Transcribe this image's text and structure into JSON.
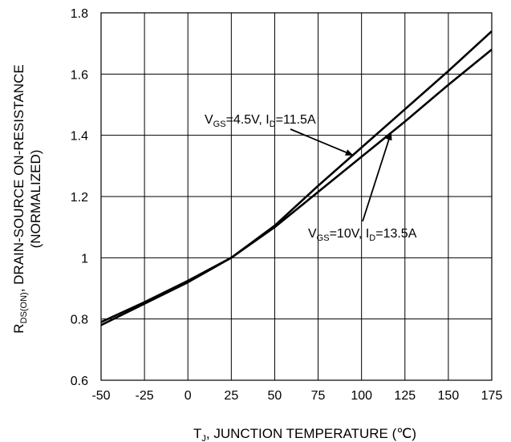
{
  "chart_data": {
    "type": "line",
    "xlabel": {
      "pre": "T",
      "sub": "J",
      "post": ", JUNCTION TEMPERATURE (℃)"
    },
    "ylabel": {
      "pre": "R",
      "sub": "DS(ON)",
      "post": ", DRAIN-SOURCE ON-RESISTANCE",
      "line2": "(NORMALIZED)"
    },
    "xlim": [
      -50,
      175
    ],
    "ylim": [
      0.6,
      1.8
    ],
    "grid": true,
    "xticks": [
      "-50",
      "-25",
      "0",
      "25",
      "50",
      "75",
      "100",
      "125",
      "150",
      "175"
    ],
    "yticks": [
      "0.6",
      "0.8",
      "1",
      "1.2",
      "1.4",
      "1.6",
      "1.8"
    ],
    "series": [
      {
        "x": [
          -50,
          -25,
          0,
          25,
          50,
          75,
          100,
          125,
          150,
          175
        ],
        "y": [
          0.79,
          0.855,
          0.925,
          1.0,
          1.105,
          1.235,
          1.36,
          1.485,
          1.61,
          1.74
        ],
        "annotation": {
          "v": "V",
          "vsub": "GS",
          "vtext": "=4.5V, I",
          "isub": "D",
          "itext": "=11.5A"
        }
      },
      {
        "x": [
          -50,
          -25,
          0,
          25,
          50,
          75,
          100,
          125,
          150,
          175
        ],
        "y": [
          0.78,
          0.85,
          0.92,
          1.0,
          1.1,
          1.215,
          1.33,
          1.445,
          1.565,
          1.68
        ],
        "annotation": {
          "v": "V",
          "vsub": "GS",
          "vtext": "=10V, I",
          "isub": "D",
          "itext": "=13.5A"
        }
      }
    ]
  }
}
